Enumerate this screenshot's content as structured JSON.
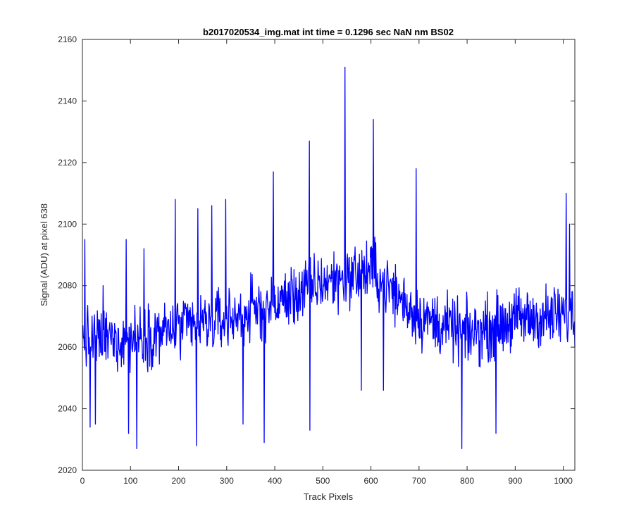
{
  "chart_data": {
    "type": "line",
    "title": "b2017020534_img.mat int time = 0.1296 sec  NaN nm BS02",
    "xlabel": "Track Pixels",
    "ylabel": "Signal (ADU) at pixel 638",
    "xlim": [
      0,
      1024
    ],
    "ylim": [
      2020,
      2160
    ],
    "xticks": [
      0,
      100,
      200,
      300,
      400,
      500,
      600,
      700,
      800,
      900,
      1000
    ],
    "yticks": [
      2020,
      2040,
      2060,
      2080,
      2100,
      2120,
      2140,
      2160
    ],
    "grid": false,
    "series": [
      {
        "color": "#0000ff",
        "x_start": 1,
        "x_step": 1,
        "n_points": 1024,
        "trend_profile": [
          [
            0,
            2062
          ],
          [
            100,
            2063
          ],
          [
            200,
            2066
          ],
          [
            300,
            2069
          ],
          [
            400,
            2074
          ],
          [
            500,
            2081
          ],
          [
            600,
            2085
          ],
          [
            700,
            2070
          ],
          [
            800,
            2064
          ],
          [
            900,
            2069
          ],
          [
            1000,
            2070
          ],
          [
            1024,
            2070
          ]
        ],
        "fluctuation_range_adu": 12,
        "features": [
          {
            "x": 5,
            "y": 2095
          },
          {
            "x": 16,
            "y": 2034
          },
          {
            "x": 27,
            "y": 2035
          },
          {
            "x": 43,
            "y": 2080
          },
          {
            "x": 96,
            "y": 2032
          },
          {
            "x": 91,
            "y": 2095
          },
          {
            "x": 113,
            "y": 2027
          },
          {
            "x": 128,
            "y": 2092
          },
          {
            "x": 193,
            "y": 2108
          },
          {
            "x": 237,
            "y": 2028
          },
          {
            "x": 240,
            "y": 2105
          },
          {
            "x": 269,
            "y": 2106
          },
          {
            "x": 298,
            "y": 2108
          },
          {
            "x": 334,
            "y": 2035
          },
          {
            "x": 378,
            "y": 2029
          },
          {
            "x": 397,
            "y": 2117
          },
          {
            "x": 472,
            "y": 2127
          },
          {
            "x": 473,
            "y": 2033
          },
          {
            "x": 546,
            "y": 2151
          },
          {
            "x": 580,
            "y": 2046
          },
          {
            "x": 605,
            "y": 2134
          },
          {
            "x": 626,
            "y": 2046
          },
          {
            "x": 694,
            "y": 2118
          },
          {
            "x": 789,
            "y": 2027
          },
          {
            "x": 860,
            "y": 2032
          },
          {
            "x": 1006,
            "y": 2110
          },
          {
            "x": 1013,
            "y": 2100
          },
          {
            "x": 1018,
            "y": 2078
          },
          {
            "x": 1024,
            "y": 2060
          }
        ]
      }
    ]
  }
}
